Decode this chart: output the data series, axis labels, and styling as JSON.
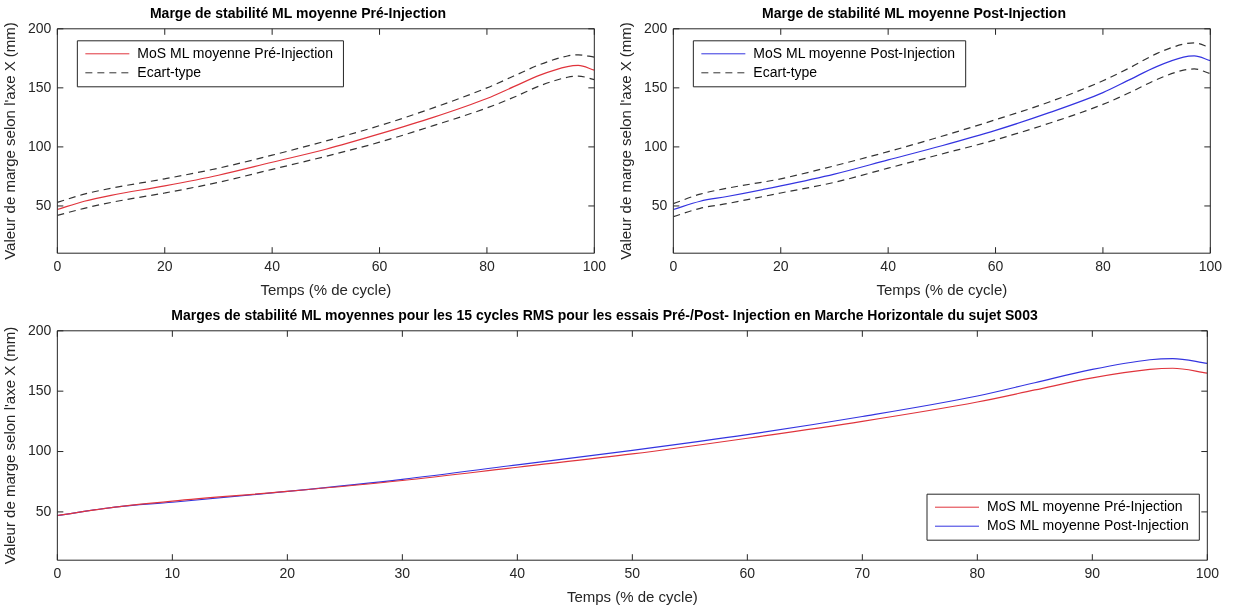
{
  "chart_data": [
    {
      "type": "line",
      "title": "Marge de stabilité ML moyenne Pré-Injection",
      "xlabel": "Temps (% de cycle)",
      "ylabel": "Valeur de marge selon l'axe X (mm)",
      "x": [
        0,
        5,
        10,
        20,
        30,
        40,
        50,
        60,
        70,
        80,
        85,
        90,
        95,
        97,
        100
      ],
      "xlim": [
        0,
        100
      ],
      "xticks": [
        0,
        20,
        40,
        60,
        80,
        100
      ],
      "ylim": [
        10,
        200
      ],
      "yticks": [
        50,
        100,
        150,
        200
      ],
      "grid": false,
      "legend": "top left",
      "marker": "none",
      "series": [
        {
          "name": "MoS ML moyenne Pré-Injection",
          "color": "#e0343c",
          "line_style": "solid",
          "values": [
            47,
            54,
            59,
            67,
            76,
            87,
            98,
            111,
            125,
            141,
            151,
            161,
            168,
            169,
            165
          ]
        },
        {
          "name": "Ecart-type",
          "color": "#333333",
          "line_style": "dashed",
          "values": [
            53,
            60,
            65,
            73,
            82,
            93,
            105,
            118,
            133,
            150,
            160,
            170,
            177,
            178,
            176
          ]
        },
        {
          "color": "#333333",
          "line_style": "dashed",
          "values": [
            42,
            48,
            53,
            61,
            70,
            81,
            92,
            104,
            118,
            133,
            142,
            152,
            159,
            160,
            157
          ]
        }
      ]
    },
    {
      "type": "line",
      "title": "Marge de stabilité ML moyenne Post-Injection",
      "xlabel": "Temps (% de cycle)",
      "ylabel": "Valeur de marge selon l'axe X (mm)",
      "x": [
        0,
        5,
        10,
        20,
        30,
        40,
        50,
        60,
        70,
        80,
        85,
        90,
        95,
        97,
        100
      ],
      "xlim": [
        0,
        100
      ],
      "xticks": [
        0,
        20,
        40,
        60,
        80,
        100
      ],
      "ylim": [
        10,
        200
      ],
      "yticks": [
        50,
        100,
        150,
        200
      ],
      "grid": false,
      "legend": "top left",
      "marker": "none",
      "series": [
        {
          "name": "MoS ML moyenne Post-Injection",
          "color": "#3434e0",
          "line_style": "solid",
          "values": [
            47,
            54,
            58,
            67,
            77,
            89,
            101,
            114,
            129,
            146,
            157,
            168,
            176,
            177,
            173
          ]
        },
        {
          "name": "Ecart-type",
          "color": "#333333",
          "line_style": "dashed",
          "values": [
            52,
            60,
            65,
            73,
            84,
            96,
            109,
            123,
            138,
            156,
            167,
            179,
            187,
            188,
            184
          ]
        },
        {
          "color": "#333333",
          "line_style": "dashed",
          "values": [
            41,
            48,
            52,
            61,
            70,
            82,
            94,
            106,
            120,
            136,
            146,
            157,
            165,
            166,
            162
          ]
        }
      ]
    },
    {
      "type": "line",
      "title": "Marges de stabilité ML moyennes pour les 15 cycles RMS pour les essais Pré-/Post- Injection en Marche Horizontale du sujet S003",
      "xlabel": "Temps (% de cycle)",
      "ylabel": "Valeur de marge selon l'axe X (mm)",
      "x": [
        0,
        5,
        10,
        20,
        30,
        40,
        50,
        60,
        70,
        80,
        85,
        90,
        95,
        97,
        100
      ],
      "xlim": [
        0,
        100
      ],
      "xticks": [
        0,
        10,
        20,
        30,
        40,
        50,
        60,
        70,
        80,
        90,
        100
      ],
      "ylim": [
        10,
        200
      ],
      "yticks": [
        50,
        100,
        150,
        200
      ],
      "grid": false,
      "legend": "bottom right",
      "marker": "none",
      "series": [
        {
          "name": "MoS ML moyenne Pré-Injection",
          "color": "#e0343c",
          "line_style": "solid",
          "values": [
            47,
            54,
            59,
            67,
            76,
            87,
            98,
            111,
            125,
            141,
            151,
            161,
            168,
            169,
            165
          ]
        },
        {
          "name": "MoS ML moyenne Post-Injection",
          "color": "#3434e0",
          "line_style": "solid",
          "values": [
            47,
            54,
            58,
            67,
            77,
            89,
            101,
            114,
            129,
            146,
            157,
            168,
            176,
            177,
            173
          ]
        }
      ]
    }
  ]
}
